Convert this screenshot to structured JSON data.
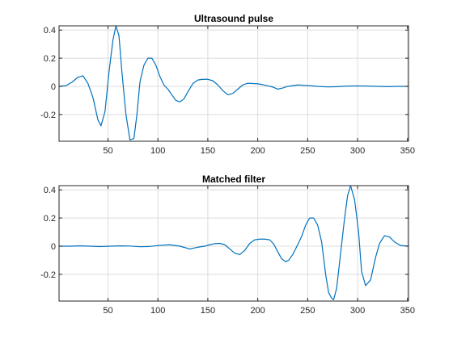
{
  "chart_data": [
    {
      "type": "line",
      "title": "Ultrasound pulse",
      "xlabel": "",
      "ylabel": "",
      "xlim": [
        1,
        351
      ],
      "ylim": [
        -0.39,
        0.43
      ],
      "xticks": [
        50,
        100,
        150,
        200,
        250,
        300,
        350
      ],
      "yticks": [
        -0.2,
        0,
        0.2,
        0.4
      ],
      "xtick_labels": [
        "50",
        "100",
        "150",
        "200",
        "250",
        "300",
        "350"
      ],
      "ytick_labels": [
        "-0.2",
        "0",
        "0.2",
        "0.4"
      ],
      "grid": true,
      "color": "#0072BD",
      "series": [
        {
          "x": [
            1,
            8,
            14,
            20,
            25,
            30,
            35,
            40,
            43,
            47,
            51,
            55,
            58,
            61,
            64,
            68,
            72,
            76,
            79,
            82,
            86,
            90,
            94,
            98,
            102,
            106,
            110,
            114,
            118,
            122,
            126,
            130,
            135,
            140,
            145,
            150,
            155,
            160,
            165,
            170,
            175,
            180,
            185,
            190,
            195,
            200,
            205,
            210,
            215,
            220,
            225,
            230,
            240,
            250,
            260,
            270,
            280,
            290,
            300,
            310,
            320,
            330,
            340,
            351
          ],
          "values": [
            0,
            0.005,
            0.03,
            0.065,
            0.075,
            0.02,
            -0.08,
            -0.24,
            -0.28,
            -0.18,
            0.1,
            0.33,
            0.43,
            0.36,
            0.1,
            -0.2,
            -0.38,
            -0.37,
            -0.2,
            0.03,
            0.15,
            0.2,
            0.2,
            0.15,
            0.07,
            0.01,
            -0.02,
            -0.06,
            -0.1,
            -0.11,
            -0.09,
            -0.04,
            0.02,
            0.045,
            0.05,
            0.05,
            0.04,
            0.01,
            -0.03,
            -0.06,
            -0.05,
            -0.02,
            0.01,
            0.022,
            0.02,
            0.018,
            0.012,
            0.004,
            -0.005,
            -0.02,
            -0.012,
            0,
            0.01,
            0.006,
            0,
            -0.004,
            -0.002,
            0.002,
            0.003,
            0.002,
            0,
            -0.002,
            0,
            0
          ]
        }
      ]
    },
    {
      "type": "line",
      "title": "Matched filter",
      "xlabel": "",
      "ylabel": "",
      "xlim": [
        1,
        351
      ],
      "ylim": [
        -0.39,
        0.43
      ],
      "xticks": [
        50,
        100,
        150,
        200,
        250,
        300,
        350
      ],
      "yticks": [
        -0.2,
        0,
        0.2,
        0.4
      ],
      "xtick_labels": [
        "50",
        "100",
        "150",
        "200",
        "250",
        "300",
        "350"
      ],
      "ytick_labels": [
        "-0.2",
        "0",
        "0.2",
        "0.4"
      ],
      "grid": true,
      "color": "#0072BD",
      "series": [
        {
          "x": [
            1,
            12,
            22,
            32,
            42,
            52,
            62,
            72,
            82,
            92,
            102,
            112,
            122,
            132,
            137,
            142,
            147,
            152,
            157,
            162,
            167,
            172,
            177,
            182,
            187,
            192,
            197,
            202,
            207,
            212,
            216,
            220,
            224,
            228,
            231,
            235,
            240,
            244,
            248,
            252,
            256,
            260,
            264,
            268,
            271,
            274,
            276,
            279,
            283,
            287,
            290,
            293,
            297,
            301,
            304,
            308,
            313,
            318,
            322,
            327,
            332,
            337,
            343,
            351
          ],
          "values": [
            0,
            0,
            0.002,
            0,
            -0.003,
            0,
            0.002,
            0.001,
            -0.004,
            -0.002,
            0.006,
            0.01,
            0,
            -0.02,
            -0.012,
            -0.005,
            0,
            0.01,
            0.018,
            0.02,
            0.01,
            -0.02,
            -0.05,
            -0.06,
            -0.03,
            0.02,
            0.045,
            0.05,
            0.05,
            0.045,
            0.015,
            -0.04,
            -0.09,
            -0.11,
            -0.1,
            -0.06,
            0.01,
            0.07,
            0.15,
            0.2,
            0.2,
            0.15,
            0.03,
            -0.2,
            -0.33,
            -0.37,
            -0.38,
            -0.3,
            -0.05,
            0.2,
            0.36,
            0.43,
            0.33,
            0.1,
            -0.18,
            -0.28,
            -0.24,
            -0.08,
            0.02,
            0.075,
            0.065,
            0.03,
            0.005,
            0
          ]
        }
      ]
    }
  ]
}
